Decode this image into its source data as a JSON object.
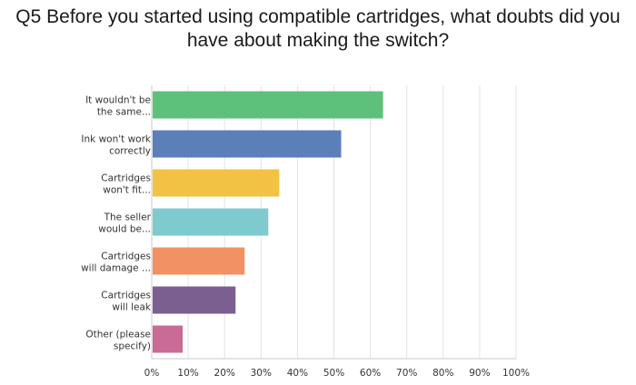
{
  "title_line1": "Q5 Before you started using compatible cartridges, what doubts did you",
  "title_line2": "have about making the switch?",
  "chart_data": {
    "type": "bar",
    "orientation": "horizontal",
    "categories": [
      [
        "It wouldn't be",
        "the same..."
      ],
      [
        "Ink won't work",
        "correctly"
      ],
      [
        "Cartridges",
        "won't fit..."
      ],
      [
        "The seller",
        "would be..."
      ],
      [
        "Cartridges",
        "will damage ..."
      ],
      [
        "Cartridges",
        "will leak"
      ],
      [
        "Other (please",
        "specify)"
      ]
    ],
    "values": [
      63.5,
      52,
      35,
      32,
      25.5,
      23,
      8.5
    ],
    "colors": [
      "#5ec17b",
      "#5b7fb8",
      "#f2c244",
      "#7fcacf",
      "#f29164",
      "#7b5f90",
      "#c96b96"
    ],
    "xticks": [
      "0%",
      "10%",
      "20%",
      "30%",
      "40%",
      "50%",
      "60%",
      "70%",
      "80%",
      "90%",
      "100%"
    ],
    "xlim": [
      0,
      100
    ],
    "grid": true,
    "gridline_color": "#e3e3e3",
    "axis_color": "#c8c8c8"
  }
}
